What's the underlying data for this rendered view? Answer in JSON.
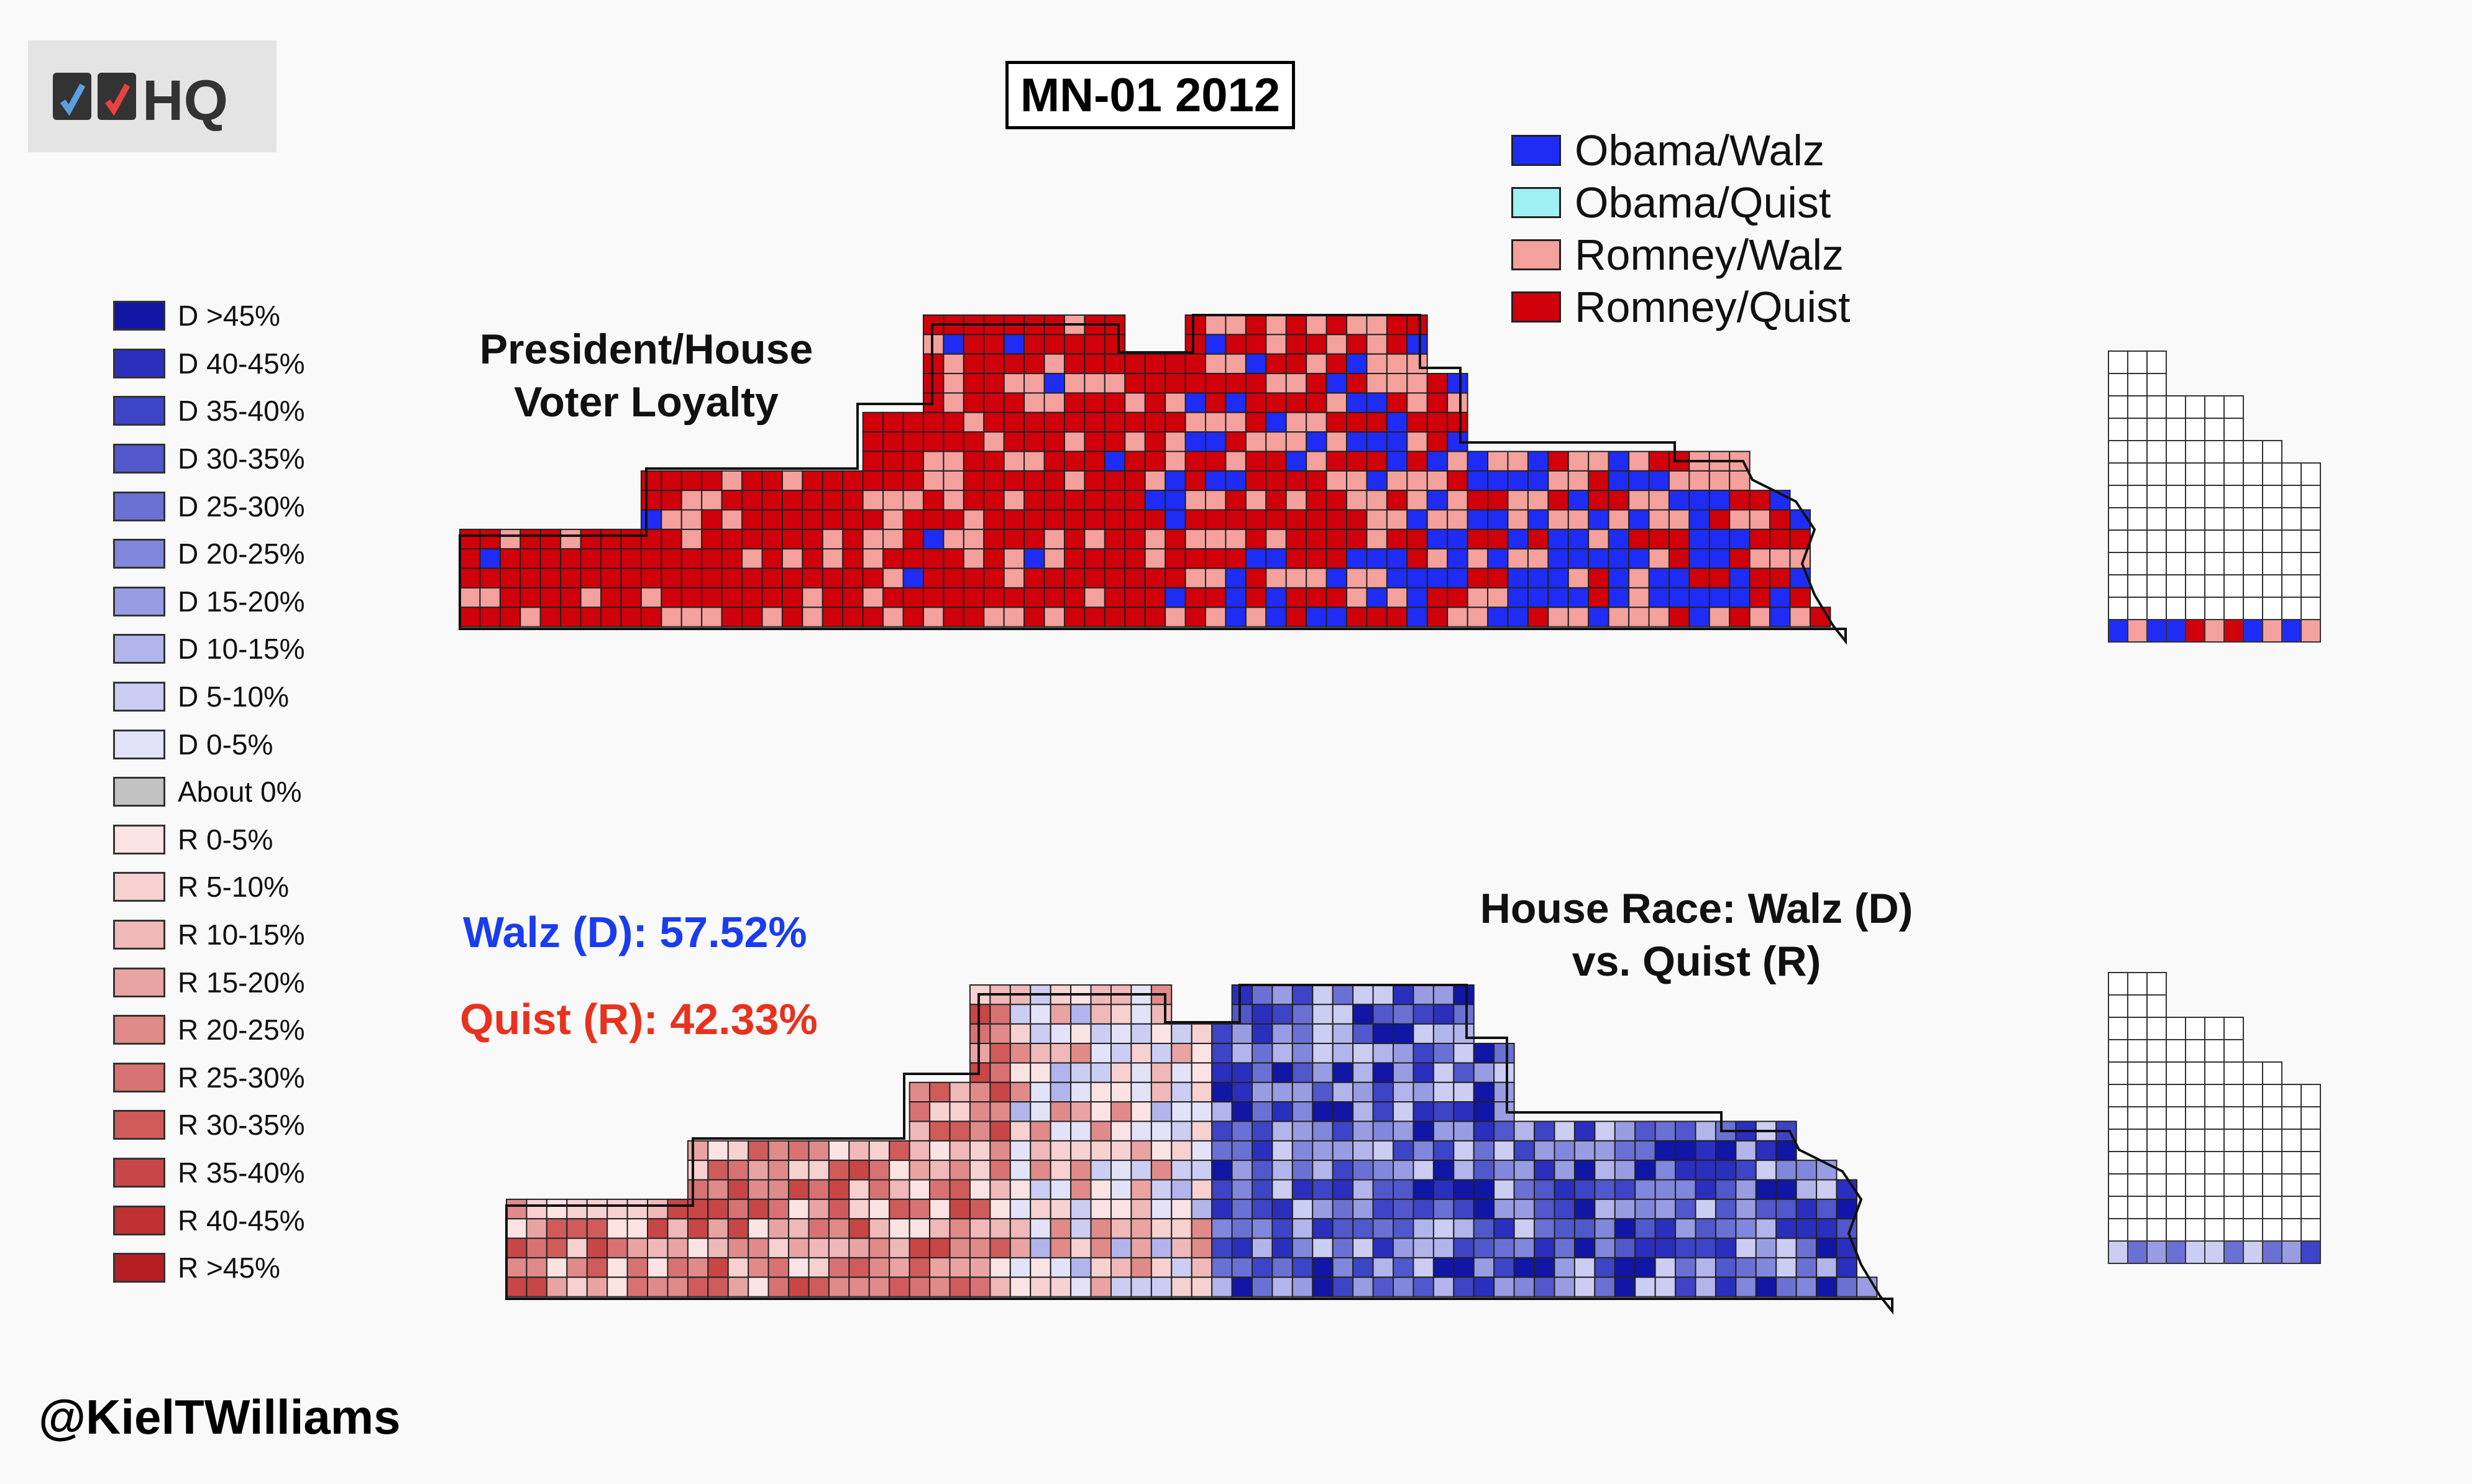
{
  "title": "MN-01 2012",
  "logo": {
    "text": "HQ"
  },
  "credit": "@KielTWilliams",
  "headings": {
    "president_house_line1": "President/House",
    "president_house_line2": "Voter Loyalty",
    "house_race_line1": "House Race: Walz (D)",
    "house_race_line2": "vs. Quist (R)"
  },
  "results": {
    "walz": "Walz (D): 57.52%",
    "quist": "Quist (R): 42.33%"
  },
  "loyalty_legend": [
    {
      "label": "Obama/Walz",
      "color": "#1f2cf5"
    },
    {
      "label": "Obama/Quist",
      "color": "#9ff0f2"
    },
    {
      "label": "Romney/Walz",
      "color": "#f4a09c"
    },
    {
      "label": "Romney/Quist",
      "color": "#d0010b"
    }
  ],
  "margin_legend": [
    {
      "label": "D >45%",
      "color": "#1116a6"
    },
    {
      "label": "D 40-45%",
      "color": "#2b2fbe"
    },
    {
      "label": "D 35-40%",
      "color": "#3d44c6"
    },
    {
      "label": "D 30-35%",
      "color": "#5158cc"
    },
    {
      "label": "D 25-30%",
      "color": "#6b71d4"
    },
    {
      "label": "D 20-25%",
      "color": "#8187dc"
    },
    {
      "label": "D 15-20%",
      "color": "#989de3"
    },
    {
      "label": "D 10-15%",
      "color": "#b2b5eb"
    },
    {
      "label": "D 5-10%",
      "color": "#cbcdf2"
    },
    {
      "label": "D 0-5%",
      "color": "#e2e3f8"
    },
    {
      "label": "About 0%",
      "color": "#c2c2c2"
    },
    {
      "label": "R 0-5%",
      "color": "#fbe3e3"
    },
    {
      "label": "R 5-10%",
      "color": "#f7d0d0"
    },
    {
      "label": "R 10-15%",
      "color": "#f0b8b8"
    },
    {
      "label": "R 15-20%",
      "color": "#e9a3a3"
    },
    {
      "label": "R 20-25%",
      "color": "#e08a8a"
    },
    {
      "label": "R 25-30%",
      "color": "#d87272"
    },
    {
      "label": "R 30-35%",
      "color": "#d05b5b"
    },
    {
      "label": "R 35-40%",
      "color": "#c84646"
    },
    {
      "label": "R 40-45%",
      "color": "#c03131"
    },
    {
      "label": "R >45%",
      "color": "#b71e22"
    }
  ]
}
